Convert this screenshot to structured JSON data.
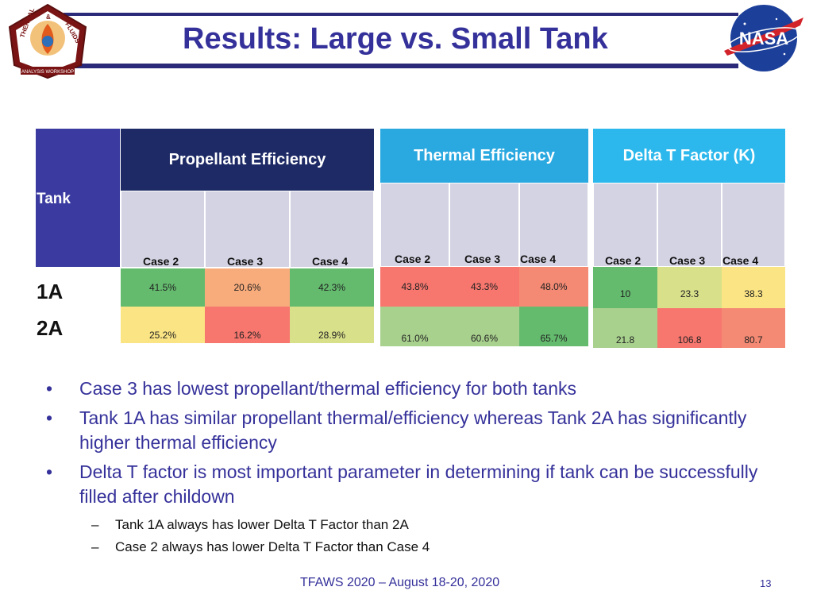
{
  "title": "Results: Large vs. Small Tank",
  "logo_left_text": [
    "THERMAL",
    "&",
    "FLUIDS",
    "ANALYSIS WORKSHOP"
  ],
  "logo_right_text": "NASA",
  "table": {
    "tank_header": "Tank",
    "group_headers": [
      "Propellant Efficiency",
      "Thermal Efficiency",
      "Delta T Factor (K)"
    ],
    "case_labels": [
      "Case 2",
      "Case 3",
      "Case 4"
    ],
    "rows": [
      {
        "label": "1A",
        "propellant": [
          "41.5%",
          "20.6%",
          "42.3%"
        ],
        "thermal": [
          "43.8%",
          "43.3%",
          "48.0%"
        ],
        "delta_t": [
          "10",
          "23.3",
          "38.3"
        ]
      },
      {
        "label": "2A",
        "propellant": [
          "25.2%",
          "16.2%",
          "28.9%"
        ],
        "thermal": [
          "61.0%",
          "60.6%",
          "65.7%"
        ],
        "delta_t": [
          "21.8",
          "106.8",
          "80.7"
        ]
      }
    ],
    "colors": {
      "tank_header_bg": "#3a3aa0",
      "propellant_header_bg": "#1e2a66",
      "thermal_header_bg": "#2aa8e0",
      "delta_header_bg": "#2cb8ec",
      "green": "#64bb6e",
      "light_green": "#a9d18e",
      "orange": "#f8ac7c",
      "yellow": "#fbe484",
      "yellow_green": "#d8e08a",
      "red": "#f7766e",
      "red_orange": "#f48a74"
    }
  },
  "bullets": [
    "Case 3 has lowest propellant/thermal efficiency for both tanks",
    "Tank 1A has similar propellant thermal/efficiency whereas Tank 2A has significantly higher thermal efficiency",
    "Delta T factor is most important parameter in determining if tank can be successfully filled after childown"
  ],
  "sub_bullets": [
    "Tank 1A always has lower Delta T Factor than 2A",
    "Case 2 always has lower Delta T Factor than Case 4"
  ],
  "footer": "TFAWS 2020 – August 18-20, 2020",
  "page_number": "13"
}
